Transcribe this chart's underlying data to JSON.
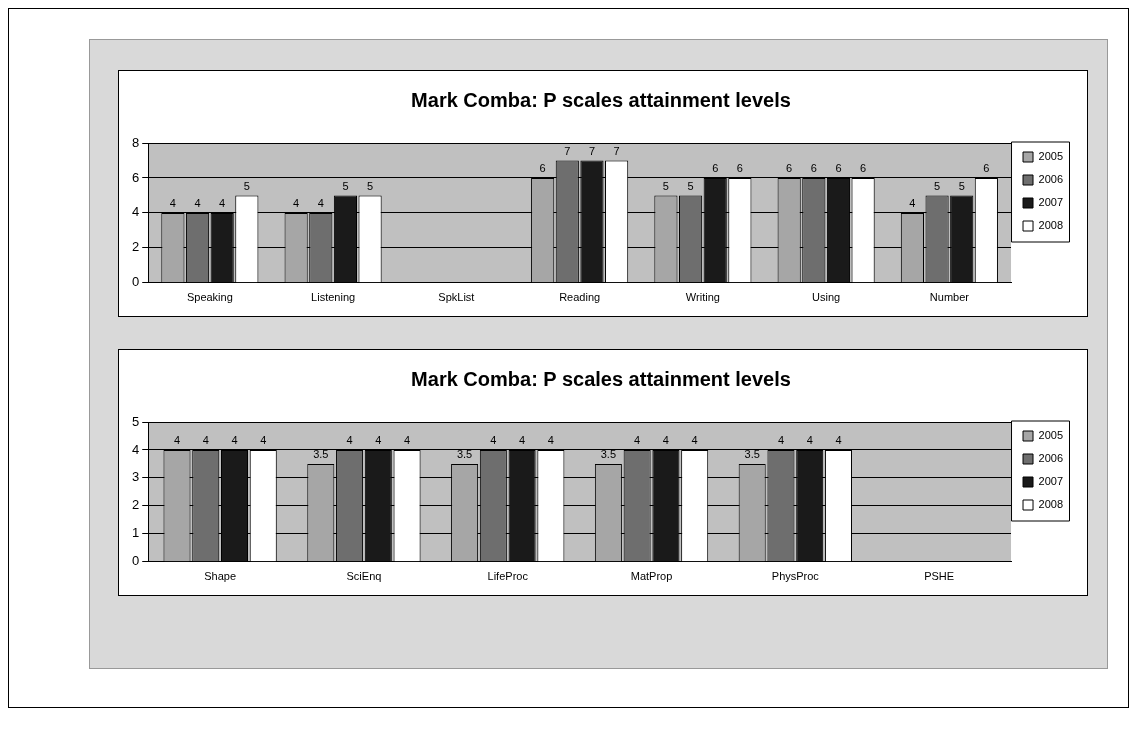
{
  "chart_data": [
    {
      "type": "bar",
      "title": "Mark Comba: P scales attainment levels",
      "categories": [
        "Speaking",
        "Listening",
        "SpkList",
        "Reading",
        "Writing",
        "Using",
        "Number"
      ],
      "series": [
        {
          "name": "2005",
          "color": "#a6a6a6",
          "values": [
            4,
            4,
            null,
            6,
            5,
            6,
            4
          ]
        },
        {
          "name": "2006",
          "color": "#6e6e6e",
          "values": [
            4,
            4,
            null,
            7,
            5,
            6,
            5
          ]
        },
        {
          "name": "2007",
          "color": "#1a1a1a",
          "values": [
            4,
            5,
            null,
            7,
            6,
            6,
            5
          ]
        },
        {
          "name": "2008",
          "color": "#ffffff",
          "values": [
            5,
            5,
            null,
            7,
            6,
            6,
            6
          ]
        }
      ],
      "ylim": [
        0,
        8
      ],
      "yticks": [
        0,
        2,
        4,
        6,
        8
      ],
      "grid": "y",
      "legend": "right",
      "data_labels": true
    },
    {
      "type": "bar",
      "title": "Mark Comba: P scales attainment levels",
      "categories": [
        "Shape",
        "SciEnq",
        "LifeProc",
        "MatProp",
        "PhysProc",
        "PSHE"
      ],
      "series": [
        {
          "name": "2005",
          "color": "#a6a6a6",
          "values": [
            4,
            3.5,
            3.5,
            3.5,
            3.5,
            null
          ]
        },
        {
          "name": "2006",
          "color": "#6e6e6e",
          "values": [
            4,
            4,
            4,
            4,
            4,
            null
          ]
        },
        {
          "name": "2007",
          "color": "#1a1a1a",
          "values": [
            4,
            4,
            4,
            4,
            4,
            null
          ]
        },
        {
          "name": "2008",
          "color": "#ffffff",
          "values": [
            4,
            4,
            4,
            4,
            4,
            null
          ]
        }
      ],
      "ylim": [
        0,
        5
      ],
      "yticks": [
        0,
        1,
        2,
        3,
        4,
        5
      ],
      "grid": "y",
      "legend": "right",
      "data_labels": true
    }
  ]
}
